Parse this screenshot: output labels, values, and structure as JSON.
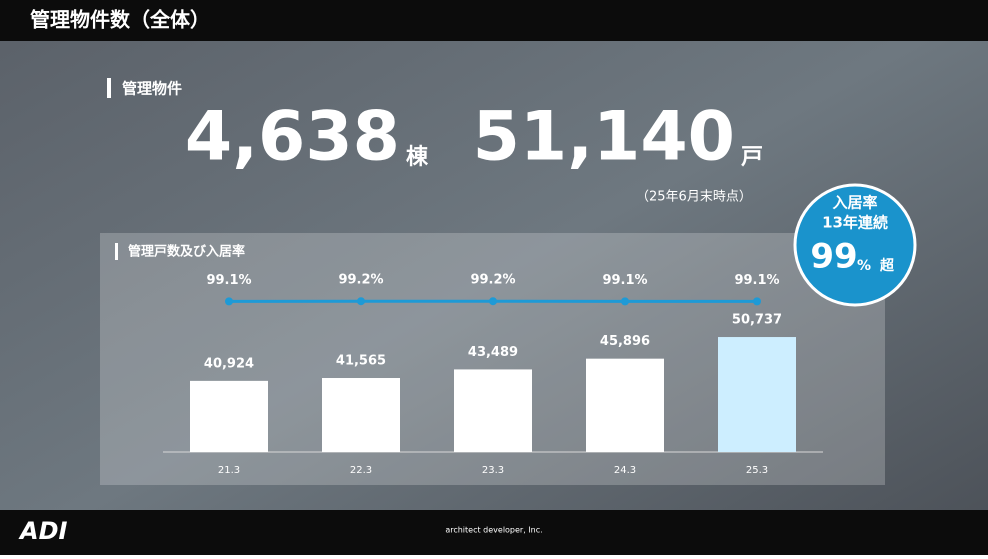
{
  "header": {
    "title": "管理物件数（全体）"
  },
  "stats": {
    "label": "管理物件",
    "buildings": "4,638",
    "buildings_unit": "棟",
    "units": "51,140",
    "units_unit": "戸",
    "note": "（25年6月末時点）"
  },
  "badge": {
    "line1": "入居率",
    "line2": "13年連続",
    "value": "99",
    "unit": "%",
    "suffix": "超"
  },
  "chart_data": {
    "type": "combo",
    "title": "管理戸数及び入居率",
    "categories": [
      "21.3",
      "22.3",
      "23.3",
      "24.3",
      "25.3"
    ],
    "bars": {
      "values": [
        40924,
        41565,
        43489,
        45896,
        50737
      ],
      "value_labels": [
        "40,924",
        "41,565",
        "43,489",
        "45,896",
        "50,737"
      ],
      "colors": [
        "#ffffff",
        "#ffffff",
        "#ffffff",
        "#ffffff",
        "#cdeeff"
      ]
    },
    "line": {
      "values": [
        99.1,
        99.2,
        99.2,
        99.1,
        99.1
      ],
      "value_labels": [
        "99.1%",
        "99.2%",
        "99.2%",
        "99.1%",
        "99.1%"
      ],
      "color": "#1e9ad6",
      "axis": "y2"
    },
    "ylim": [
      25000,
      55000
    ],
    "y2lim": [
      0,
      100
    ]
  },
  "footer": {
    "logo": "ADI",
    "company": "architect developer, Inc."
  }
}
